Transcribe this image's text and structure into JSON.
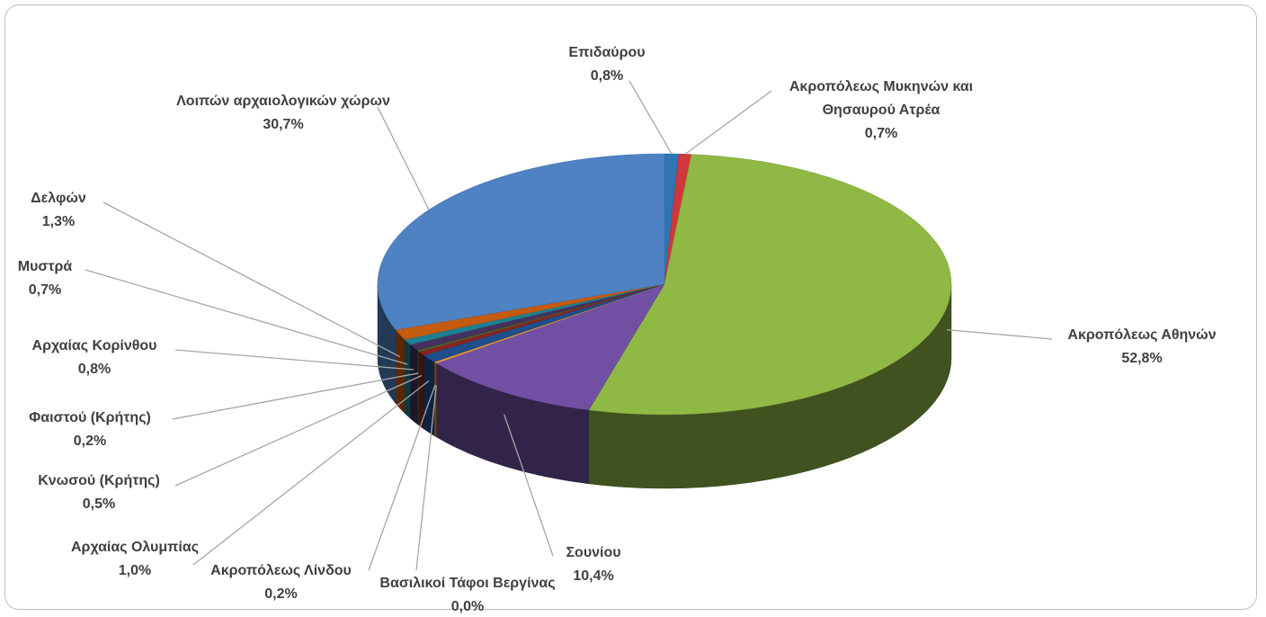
{
  "chart_data": {
    "type": "pie3d",
    "categories": [
      "Επιδαύρου",
      "Ακροπόλεως Μυκηνών και Θησαυρού Ατρέα",
      "Ακροπόλεως Αθηνών",
      "Σουνίου",
      "Βασιλικοί Τάφοι Βεργίνας",
      "Ακροπόλεως Λίνδου",
      "Αρχαίας Ολυμπίας",
      "Κνωσού (Κρήτης)",
      "Φαιστού (Κρήτης)",
      "Αρχαίας Κορίνθου",
      "Μυστρά",
      "Δελφών",
      "Λοιπών αρχαιολογικών χώρων"
    ],
    "values": [
      0.8,
      0.7,
      52.8,
      10.4,
      0.0,
      0.2,
      1.0,
      0.5,
      0.2,
      0.8,
      0.7,
      1.3,
      30.7
    ],
    "value_labels": [
      "0,8%",
      "0,7%",
      "52,8%",
      "10,4%",
      "0,0%",
      "0,2%",
      "1,0%",
      "0,5%",
      "0,2%",
      "0,8%",
      "0,7%",
      "1,3%",
      "30,7%"
    ],
    "colors": [
      "#2e75b6",
      "#d0373a",
      "#8fb845",
      "#7150a3",
      "#3fb6d9",
      "#f39434",
      "#1f4e8c",
      "#8a2424",
      "#4d6b22",
      "#46305f",
      "#1d7f93",
      "#c55a11",
      "#4f82c2"
    ]
  }
}
